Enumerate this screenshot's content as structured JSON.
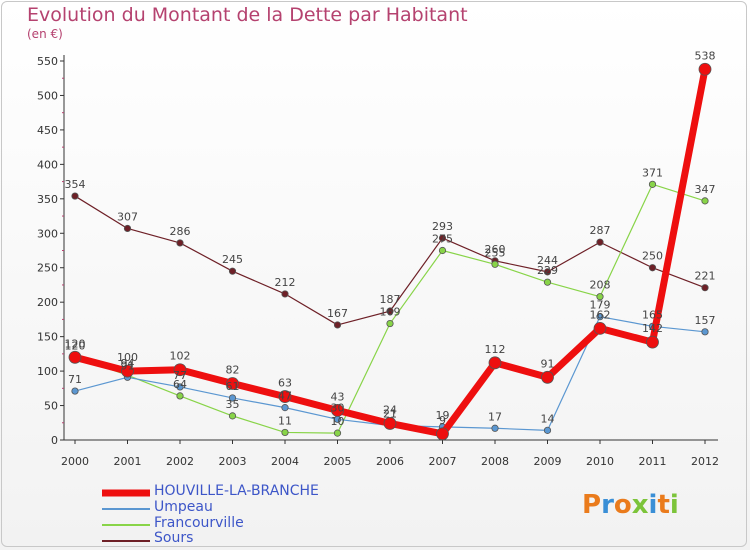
{
  "title": "Evolution du Montant de la Dette par Habitant",
  "unit": "(en €)",
  "brand": "Proxiti",
  "chart_data": {
    "type": "line",
    "title": "Evolution du Montant de la Dette par Habitant",
    "ylabel": "(en €)",
    "x": [
      "2000",
      "2001",
      "2002",
      "2003",
      "2004",
      "2005",
      "2006",
      "2007",
      "2008",
      "2009",
      "2010",
      "2011",
      "2012"
    ],
    "yticks": [
      0,
      50,
      100,
      150,
      200,
      250,
      300,
      350,
      400,
      450,
      500,
      550
    ],
    "ylim": [
      0,
      550
    ],
    "grid": false,
    "legend": "bottom-left",
    "series": [
      {
        "name": "Sours",
        "color": "#6e2027",
        "width": 1.2,
        "r": 3.2,
        "values": [
          354,
          307,
          286,
          245,
          212,
          167,
          187,
          293,
          260,
          244,
          287,
          250,
          221
        ]
      },
      {
        "name": "Francourville",
        "color": "#88d448",
        "width": 1.2,
        "r": 3.2,
        "values": [
          120,
          94,
          64,
          35,
          11,
          10,
          169,
          275,
          255,
          229,
          208,
          371,
          347
        ]
      },
      {
        "name": "Umpeau",
        "color": "#5b97d1",
        "width": 1.2,
        "r": 3.2,
        "values": [
          71,
          91,
          77,
          61,
          47,
          30,
          21,
          19,
          17,
          14,
          179,
          165,
          157
        ]
      },
      {
        "name": "HOUVILLE-LA-BRANCHE",
        "color": "#ee0f0f",
        "width": 7,
        "r": 6,
        "values": [
          120,
          100,
          102,
          82,
          63,
          43,
          24,
          9,
          112,
          91,
          162,
          142,
          538
        ]
      }
    ]
  }
}
